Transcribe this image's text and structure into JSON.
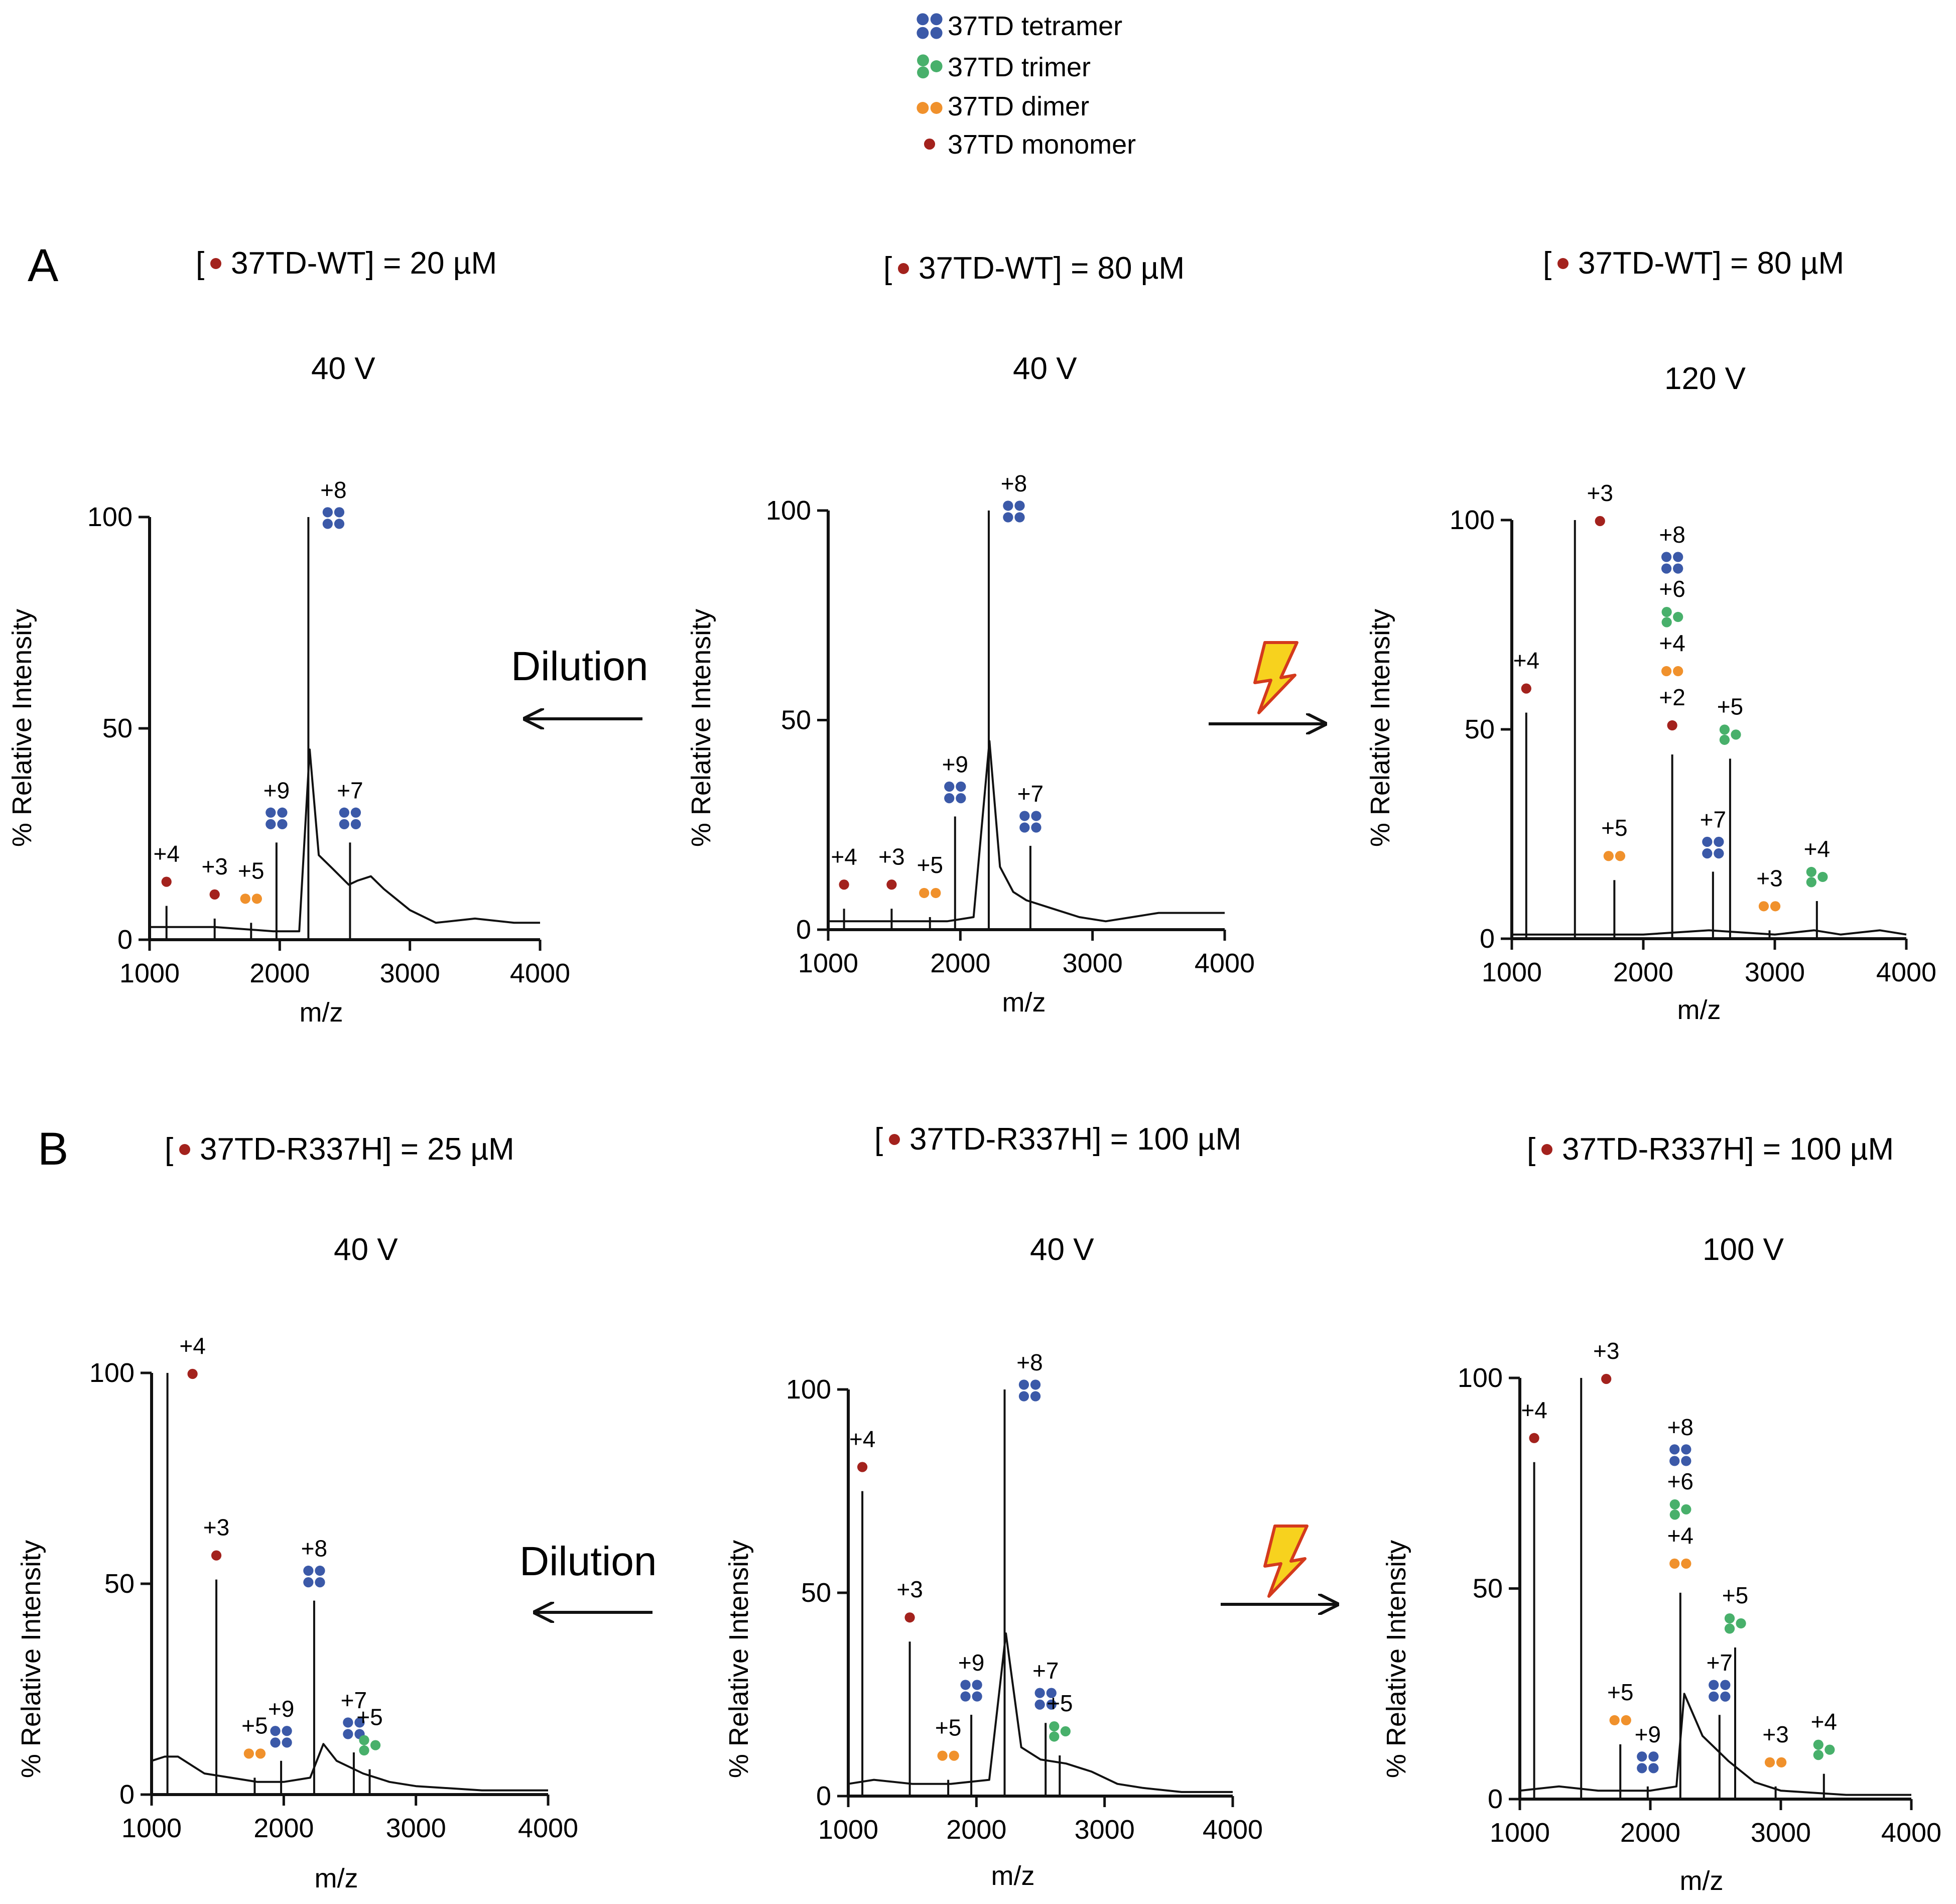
{
  "colors": {
    "tetramer": "#3b59a8",
    "trimer": "#48b06b",
    "dimer": "#f0912c",
    "monomer": "#a3221d",
    "axis": "#111111",
    "bolt_fill": "#f7d21e",
    "bolt_stroke": "#d43a1d"
  },
  "legend": [
    {
      "species": "tetramer",
      "label": "37TD tetramer"
    },
    {
      "species": "trimer",
      "label": "37TD trimer"
    },
    {
      "species": "dimer",
      "label": "37TD dimer"
    },
    {
      "species": "monomer",
      "label": "37TD monomer"
    }
  ],
  "panel_letters": {
    "A": "A",
    "B": "B"
  },
  "arrows": {
    "dilution_label": "Dilution",
    "activation_icon": "lightning-bolt-icon"
  },
  "chart_data": [
    {
      "type": "line",
      "panel": "A",
      "position": "left",
      "title": "[• 37TD-WT] = 20 µM",
      "title_prefix": "[",
      "title_text": "37TD-WT] = 20 µM",
      "voltage": "40 V",
      "xlabel": "m/z",
      "ylabel": "% Relative Intensity",
      "xlim": [
        1000,
        4000
      ],
      "ylim": [
        0,
        100
      ],
      "xticks": [
        1000,
        2000,
        3000,
        4000
      ],
      "yticks": [
        0,
        50,
        100
      ],
      "peaks": [
        {
          "x": 1130,
          "y": 8,
          "label": "+4",
          "species": "monomer"
        },
        {
          "x": 1500,
          "y": 5,
          "label": "+3",
          "species": "monomer"
        },
        {
          "x": 1780,
          "y": 4,
          "label": "+5",
          "species": "dimer"
        },
        {
          "x": 1975,
          "y": 23,
          "label": "+9",
          "species": "tetramer"
        },
        {
          "x": 2220,
          "y": 100,
          "label": "+8",
          "species": "tetramer"
        },
        {
          "x": 2540,
          "y": 23,
          "label": "+7",
          "species": "tetramer"
        }
      ],
      "baseline": [
        [
          1000,
          3
        ],
        [
          1500,
          3
        ],
        [
          1950,
          2
        ],
        [
          2000,
          2
        ],
        [
          2150,
          2
        ],
        [
          2230,
          45
        ],
        [
          2300,
          20
        ],
        [
          2400,
          17
        ],
        [
          2530,
          13
        ],
        [
          2600,
          14
        ],
        [
          2700,
          15
        ],
        [
          2800,
          12
        ],
        [
          3000,
          7
        ],
        [
          3200,
          4
        ],
        [
          3500,
          5
        ],
        [
          3800,
          4
        ],
        [
          4000,
          4
        ]
      ]
    },
    {
      "type": "line",
      "panel": "A",
      "position": "middle",
      "title": "[• 37TD-WT] = 80 µM",
      "title_prefix": "[",
      "title_text": "37TD-WT] = 80 µM",
      "voltage": "40 V",
      "xlabel": "m/z",
      "ylabel": "% Relative Intensity",
      "xlim": [
        1000,
        4000
      ],
      "ylim": [
        0,
        100
      ],
      "xticks": [
        1000,
        2000,
        3000,
        4000
      ],
      "yticks": [
        0,
        50,
        100
      ],
      "peaks": [
        {
          "x": 1120,
          "y": 5,
          "label": "+4",
          "species": "monomer"
        },
        {
          "x": 1480,
          "y": 5,
          "label": "+3",
          "species": "monomer"
        },
        {
          "x": 1770,
          "y": 3,
          "label": "+5",
          "species": "dimer"
        },
        {
          "x": 1960,
          "y": 27,
          "label": "+9",
          "species": "tetramer"
        },
        {
          "x": 2215,
          "y": 100,
          "label": "+8",
          "species": "tetramer"
        },
        {
          "x": 2530,
          "y": 20,
          "label": "+7",
          "species": "tetramer"
        }
      ],
      "baseline": [
        [
          1000,
          2
        ],
        [
          1500,
          2
        ],
        [
          1900,
          2
        ],
        [
          2100,
          3
        ],
        [
          2220,
          45
        ],
        [
          2300,
          15
        ],
        [
          2400,
          9
        ],
        [
          2500,
          7
        ],
        [
          2700,
          5
        ],
        [
          2900,
          3
        ],
        [
          3100,
          2
        ],
        [
          3300,
          3
        ],
        [
          3500,
          4
        ],
        [
          3800,
          4
        ],
        [
          4000,
          4
        ]
      ]
    },
    {
      "type": "line",
      "panel": "A",
      "position": "right",
      "title": "[• 37TD-WT] = 80 µM",
      "title_prefix": "[",
      "title_text": "37TD-WT] = 80 µM",
      "voltage": "120 V",
      "xlabel": "m/z",
      "ylabel": "% Relative Intensity",
      "xlim": [
        1000,
        4000
      ],
      "ylim": [
        0,
        100
      ],
      "xticks": [
        1000,
        2000,
        3000,
        4000
      ],
      "yticks": [
        0,
        50,
        100
      ],
      "peaks": [
        {
          "x": 1110,
          "y": 54,
          "label": "+4",
          "species": "monomer"
        },
        {
          "x": 1480,
          "y": 100,
          "label": "+3",
          "species": "monomer"
        },
        {
          "x": 1780,
          "y": 14,
          "label": "+5",
          "species": "dimer"
        },
        {
          "x": 2220,
          "y": 44,
          "labels": [
            "+8",
            "+6",
            "+4",
            "+2"
          ],
          "species_list": [
            "tetramer",
            "trimer",
            "dimer",
            "monomer"
          ]
        },
        {
          "x": 2530,
          "y": 16,
          "label": "+7",
          "species": "tetramer"
        },
        {
          "x": 2660,
          "y": 43,
          "label": "+5",
          "species": "trimer"
        },
        {
          "x": 2960,
          "y": 2,
          "label": "+3",
          "species": "dimer"
        },
        {
          "x": 3320,
          "y": 9,
          "label": "+4",
          "species": "trimer"
        }
      ],
      "baseline": [
        [
          1000,
          1
        ],
        [
          2000,
          1
        ],
        [
          2500,
          2
        ],
        [
          3000,
          1
        ],
        [
          3300,
          2
        ],
        [
          3500,
          1
        ],
        [
          3800,
          2
        ],
        [
          4000,
          1
        ]
      ]
    },
    {
      "type": "line",
      "panel": "B",
      "position": "left",
      "title": "[• 37TD-R337H] = 25 µM",
      "title_prefix": "[",
      "title_text": "37TD-R337H] = 25 µM",
      "voltage": "40 V",
      "xlabel": "m/z",
      "ylabel": "% Relative Intensity",
      "xlim": [
        1000,
        4000
      ],
      "ylim": [
        0,
        100
      ],
      "xticks": [
        1000,
        2000,
        3000,
        4000
      ],
      "yticks": [
        0,
        50,
        100
      ],
      "peaks": [
        {
          "x": 1120,
          "y": 100,
          "label": "+4",
          "species": "monomer"
        },
        {
          "x": 1490,
          "y": 51,
          "label": "+3",
          "species": "monomer"
        },
        {
          "x": 1780,
          "y": 4,
          "label": "+5",
          "species": "dimer"
        },
        {
          "x": 1980,
          "y": 8,
          "label": "+9",
          "species": "tetramer"
        },
        {
          "x": 2230,
          "y": 46,
          "label": "+8",
          "species": "tetramer"
        },
        {
          "x": 2530,
          "y": 10,
          "label": "+7",
          "species": "tetramer"
        },
        {
          "x": 2650,
          "y": 6,
          "label": "+5",
          "species": "trimer"
        }
      ],
      "baseline": [
        [
          1000,
          8
        ],
        [
          1100,
          9
        ],
        [
          1200,
          9
        ],
        [
          1400,
          5
        ],
        [
          1600,
          4
        ],
        [
          1800,
          3
        ],
        [
          2000,
          3
        ],
        [
          2200,
          4
        ],
        [
          2300,
          12
        ],
        [
          2400,
          8
        ],
        [
          2600,
          5
        ],
        [
          2800,
          3
        ],
        [
          3000,
          2
        ],
        [
          3500,
          1
        ],
        [
          4000,
          1
        ]
      ]
    },
    {
      "type": "line",
      "panel": "B",
      "position": "middle",
      "title": "[• 37TD-R337H] = 100 µM",
      "title_prefix": "[",
      "title_text": "37TD-R337H] = 100 µM",
      "voltage": "40 V",
      "xlabel": "m/z",
      "ylabel": "% Relative Intensity",
      "xlim": [
        1000,
        4000
      ],
      "ylim": [
        0,
        100
      ],
      "xticks": [
        1000,
        2000,
        3000,
        4000
      ],
      "yticks": [
        0,
        50,
        100
      ],
      "peaks": [
        {
          "x": 1110,
          "y": 75,
          "label": "+4",
          "species": "monomer"
        },
        {
          "x": 1480,
          "y": 38,
          "label": "+3",
          "species": "monomer"
        },
        {
          "x": 1780,
          "y": 4,
          "label": "+5",
          "species": "dimer"
        },
        {
          "x": 1960,
          "y": 20,
          "label": "+9",
          "species": "tetramer"
        },
        {
          "x": 2220,
          "y": 100,
          "label": "+8",
          "species": "tetramer"
        },
        {
          "x": 2540,
          "y": 18,
          "label": "+7",
          "species": "tetramer"
        },
        {
          "x": 2650,
          "y": 10,
          "label": "+5",
          "species": "trimer"
        }
      ],
      "baseline": [
        [
          1000,
          3
        ],
        [
          1200,
          4
        ],
        [
          1500,
          3
        ],
        [
          1800,
          3
        ],
        [
          2100,
          4
        ],
        [
          2230,
          40
        ],
        [
          2350,
          12
        ],
        [
          2500,
          9
        ],
        [
          2700,
          8
        ],
        [
          2900,
          6
        ],
        [
          3100,
          3
        ],
        [
          3300,
          2
        ],
        [
          3600,
          1
        ],
        [
          4000,
          1
        ]
      ]
    },
    {
      "type": "line",
      "panel": "B",
      "position": "right",
      "title": "[• 37TD-R337H] = 100 µM",
      "title_prefix": "[",
      "title_text": "37TD-R337H] = 100 µM",
      "voltage": "100 V",
      "xlabel": "m/z",
      "ylabel": "% Relative Intensity",
      "xlim": [
        1000,
        4000
      ],
      "ylim": [
        0,
        100
      ],
      "xticks": [
        1000,
        2000,
        3000,
        4000
      ],
      "yticks": [
        0,
        50,
        100
      ],
      "peaks": [
        {
          "x": 1110,
          "y": 80,
          "label": "+4",
          "species": "monomer"
        },
        {
          "x": 1470,
          "y": 100,
          "label": "+3",
          "species": "monomer"
        },
        {
          "x": 1770,
          "y": 13,
          "label": "+5",
          "species": "dimer"
        },
        {
          "x": 1980,
          "y": 3,
          "label": "+9",
          "species": "tetramer"
        },
        {
          "x": 2230,
          "y": 49,
          "labels": [
            "+8",
            "+6",
            "+4"
          ],
          "species_list": [
            "tetramer",
            "trimer",
            "dimer"
          ]
        },
        {
          "x": 2530,
          "y": 20,
          "label": "+7",
          "species": "tetramer"
        },
        {
          "x": 2650,
          "y": 36,
          "label": "+5",
          "species": "trimer"
        },
        {
          "x": 2960,
          "y": 3,
          "label": "+3",
          "species": "dimer"
        },
        {
          "x": 3330,
          "y": 6,
          "label": "+4",
          "species": "trimer"
        }
      ],
      "baseline": [
        [
          1000,
          2
        ],
        [
          1300,
          3
        ],
        [
          1600,
          2
        ],
        [
          2000,
          2
        ],
        [
          2200,
          3
        ],
        [
          2260,
          25
        ],
        [
          2400,
          15
        ],
        [
          2600,
          9
        ],
        [
          2800,
          4
        ],
        [
          3000,
          2
        ],
        [
          3500,
          1
        ],
        [
          4000,
          1
        ]
      ]
    }
  ]
}
